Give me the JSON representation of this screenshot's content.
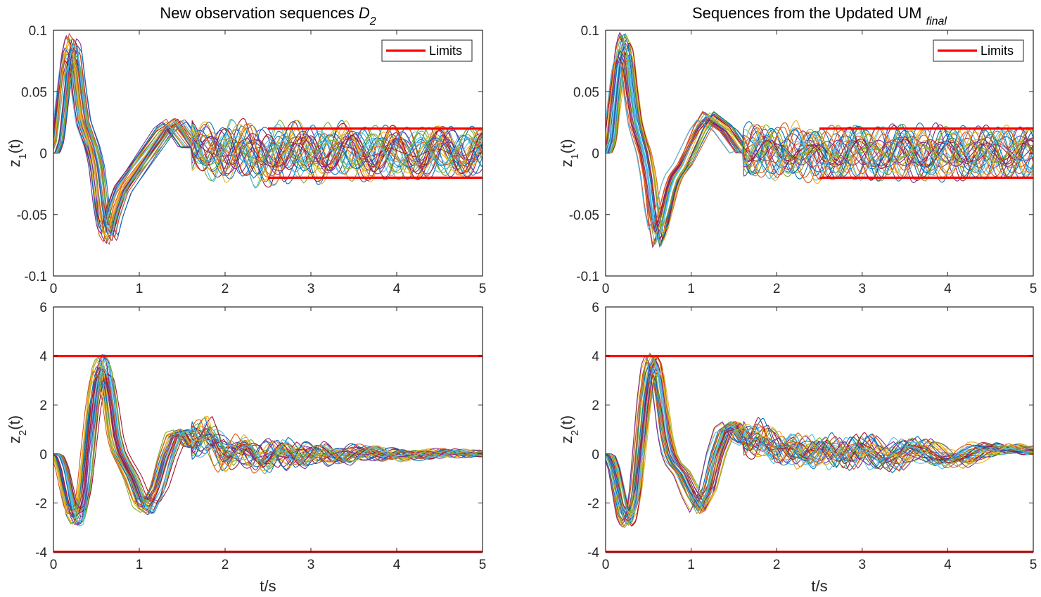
{
  "chart_data": [
    {
      "type": "line",
      "title": "New observation sequences",
      "title_math": "D",
      "title_math_sub": "2",
      "xlabel": "",
      "ylabel": "z",
      "ylabel_sub": "1",
      "ylabel_suffix": "(t)",
      "xlim": [
        0,
        5
      ],
      "ylim": [
        -0.1,
        0.1
      ],
      "xticks": [
        "0",
        "1",
        "2",
        "3",
        "4",
        "5"
      ],
      "yticks": [
        "-0.1",
        "-0.05",
        "0",
        "0.05",
        "0.1"
      ],
      "legend": {
        "label": "Limits",
        "placement": "top-right"
      },
      "limits": [
        {
          "x_from": 2.5,
          "x_to": 5,
          "y": 0.02
        },
        {
          "x_from": 2.5,
          "x_to": 5,
          "y": -0.02
        }
      ],
      "series": [
        {
          "x": [
            0,
            0.05,
            0.1,
            0.15,
            0.2,
            0.25,
            0.3,
            0.35,
            0.4,
            0.45,
            0.5,
            0.55,
            0.6,
            0.65,
            0.7,
            0.75,
            0.8,
            0.9,
            1.0,
            1.1,
            1.2,
            1.3,
            1.4,
            1.5,
            1.6,
            1.8,
            2.0,
            2.2,
            2.5,
            2.8,
            3.1,
            3.4,
            3.7,
            4.0,
            4.3,
            4.6,
            5.0
          ],
          "y": [
            0,
            0.01,
            0.04,
            0.07,
            0.085,
            0.08,
            0.05,
            0.025,
            0.015,
            0.005,
            -0.01,
            -0.04,
            -0.06,
            -0.065,
            -0.05,
            -0.04,
            -0.03,
            -0.02,
            -0.01,
            0.0,
            0.01,
            0.02,
            0.025,
            0.015,
            0.005,
            0.005,
            -0.005,
            0.01,
            -0.01,
            0.008,
            -0.005,
            0.006,
            -0.004,
            0.004,
            -0.003,
            0.003,
            0.0
          ]
        }
      ]
    },
    {
      "type": "line",
      "title": "Sequences from the Updated UM",
      "title_math": "",
      "title_math_sub": "final",
      "xlabel": "",
      "ylabel": "z",
      "ylabel_sub": "1",
      "ylabel_suffix": "(t)",
      "xlim": [
        0,
        5
      ],
      "ylim": [
        -0.1,
        0.1
      ],
      "xticks": [
        "0",
        "1",
        "2",
        "3",
        "4",
        "5"
      ],
      "yticks": [
        "-0.1",
        "-0.05",
        "0",
        "0.05",
        "0.1"
      ],
      "legend": {
        "label": "Limits",
        "placement": "top-right"
      },
      "limits": [
        {
          "x_from": 2.5,
          "x_to": 5,
          "y": 0.02
        },
        {
          "x_from": 2.5,
          "x_to": 5,
          "y": -0.02
        }
      ],
      "series": [
        {
          "x": [
            0,
            0.05,
            0.1,
            0.15,
            0.2,
            0.25,
            0.3,
            0.35,
            0.4,
            0.45,
            0.5,
            0.55,
            0.6,
            0.65,
            0.7,
            0.75,
            0.8,
            0.9,
            1.0,
            1.1,
            1.2,
            1.3,
            1.4,
            1.5,
            1.6,
            1.8,
            2.0,
            2.2,
            2.5,
            2.8,
            3.1,
            3.4,
            3.7,
            4.0,
            4.3,
            4.6,
            5.0
          ],
          "y": [
            0,
            0.01,
            0.045,
            0.075,
            0.087,
            0.08,
            0.05,
            0.025,
            0.012,
            0.0,
            -0.02,
            -0.05,
            -0.068,
            -0.06,
            -0.045,
            -0.03,
            -0.02,
            -0.01,
            0.005,
            0.02,
            0.03,
            0.025,
            0.02,
            0.01,
            0.0,
            0.005,
            -0.004,
            0.006,
            -0.006,
            0.005,
            -0.004,
            0.004,
            -0.003,
            0.003,
            -0.002,
            0.002,
            0.0
          ]
        }
      ]
    },
    {
      "type": "line",
      "title": "",
      "xlabel": "t/s",
      "ylabel": "z",
      "ylabel_sub": "2",
      "ylabel_suffix": "(t)",
      "xlim": [
        0,
        5
      ],
      "ylim": [
        -4,
        6
      ],
      "xticks": [
        "0",
        "1",
        "2",
        "3",
        "4",
        "5"
      ],
      "yticks": [
        "-4",
        "-2",
        "0",
        "2",
        "4",
        "6"
      ],
      "limits": [
        {
          "x_from": 0,
          "x_to": 5,
          "y": 4
        },
        {
          "x_from": 0,
          "x_to": 5,
          "y": -4
        }
      ],
      "series": [
        {
          "x": [
            0,
            0.05,
            0.1,
            0.15,
            0.2,
            0.25,
            0.3,
            0.35,
            0.4,
            0.45,
            0.5,
            0.55,
            0.6,
            0.65,
            0.7,
            0.75,
            0.8,
            0.9,
            1.0,
            1.1,
            1.2,
            1.3,
            1.4,
            1.5,
            1.6,
            1.7,
            1.8,
            2.0,
            2.2,
            2.4,
            2.6,
            2.8,
            3.0,
            3.3,
            3.6,
            4.0,
            4.5,
            5.0
          ],
          "y": [
            0,
            -0.1,
            -0.6,
            -1.5,
            -2.3,
            -2.6,
            -2.5,
            -1.6,
            0.2,
            2.0,
            3.2,
            3.6,
            3.4,
            2.2,
            0.8,
            0.1,
            -0.3,
            -1.0,
            -2.0,
            -2.2,
            -1.5,
            -0.2,
            0.8,
            0.9,
            0.3,
            0.5,
            1.0,
            -0.2,
            0.3,
            -0.4,
            0.3,
            -0.3,
            0.2,
            -0.2,
            0.15,
            -0.1,
            0.05,
            0.0
          ]
        }
      ]
    },
    {
      "type": "line",
      "title": "",
      "xlabel": "t/s",
      "ylabel": "z",
      "ylabel_sub": "2",
      "ylabel_suffix": "(t)",
      "xlim": [
        0,
        5
      ],
      "ylim": [
        -4,
        6
      ],
      "xticks": [
        "0",
        "1",
        "2",
        "3",
        "4",
        "5"
      ],
      "yticks": [
        "-4",
        "-2",
        "0",
        "2",
        "4",
        "6"
      ],
      "limits": [
        {
          "x_from": 0,
          "x_to": 5,
          "y": 4
        },
        {
          "x_from": 0,
          "x_to": 5,
          "y": -4
        }
      ],
      "series": [
        {
          "x": [
            0,
            0.05,
            0.1,
            0.15,
            0.2,
            0.25,
            0.3,
            0.35,
            0.4,
            0.45,
            0.5,
            0.55,
            0.6,
            0.65,
            0.7,
            0.75,
            0.8,
            0.9,
            1.0,
            1.1,
            1.2,
            1.3,
            1.4,
            1.5,
            1.6,
            1.7,
            1.8,
            2.0,
            2.2,
            2.4,
            2.6,
            2.8,
            3.0,
            3.3,
            3.6,
            4.0,
            4.5,
            5.0
          ],
          "y": [
            0,
            -0.1,
            -0.6,
            -1.5,
            -2.4,
            -2.7,
            -2.5,
            -1.6,
            0.2,
            2.0,
            3.3,
            3.7,
            3.4,
            2.2,
            0.8,
            0.0,
            -0.4,
            -0.8,
            -1.6,
            -2.2,
            -1.5,
            0.0,
            1.0,
            1.2,
            0.6,
            0.4,
            0.9,
            0.0,
            0.4,
            -0.2,
            0.5,
            -0.4,
            0.6,
            -0.5,
            0.5,
            -0.4,
            0.3,
            0.1
          ]
        }
      ]
    }
  ],
  "colors": {
    "limit_line": "#ff0000",
    "axes": "#262626",
    "palette": [
      "#0072bd",
      "#d95319",
      "#edb120",
      "#7e2f8e",
      "#77ac30",
      "#4dbeee",
      "#a2142f"
    ]
  }
}
